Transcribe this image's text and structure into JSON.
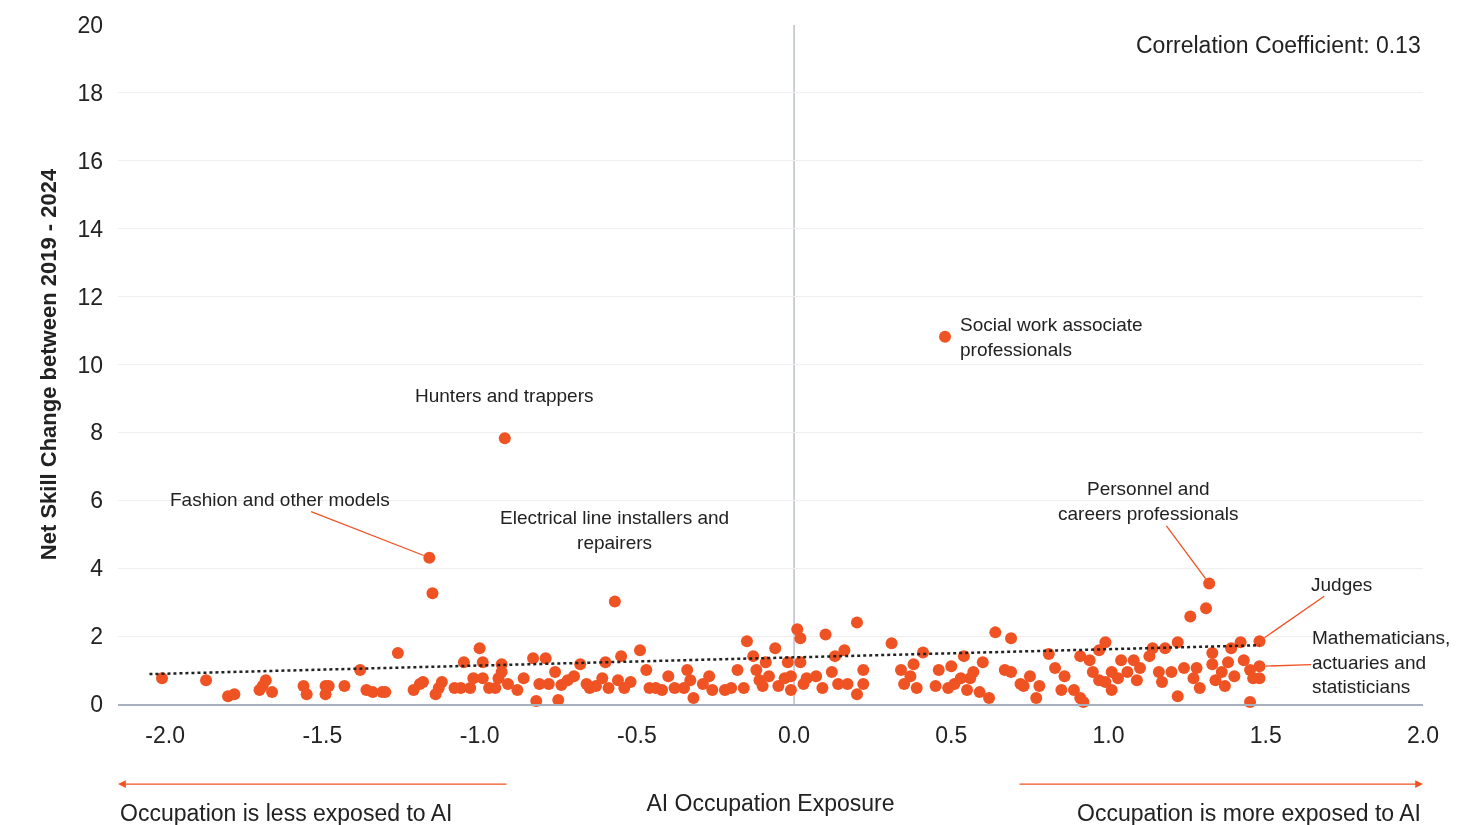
{
  "chart_data": {
    "type": "scatter",
    "xlabel": "AI Occupation Exposure",
    "ylabel": "Net Skill Change between 2019 - 2024",
    "xlim": [
      -2.15,
      2.0
    ],
    "xticks": [
      {
        "value": -2,
        "label": "-2.0"
      },
      {
        "value": -1.5,
        "label": "-1.5"
      },
      {
        "value": -1,
        "label": "-1.0"
      },
      {
        "value": -0.5,
        "label": "-0.5"
      },
      {
        "value": 0,
        "label": "0.0"
      },
      {
        "value": 0.5,
        "label": "0.5"
      },
      {
        "value": 1,
        "label": "1.0"
      },
      {
        "value": 1.5,
        "label": "1.5"
      },
      {
        "value": 2,
        "label": "2.0"
      }
    ],
    "ylim": [
      0,
      20
    ],
    "yticks": [
      0,
      2,
      4,
      6,
      8,
      10,
      12,
      14,
      16,
      18,
      20
    ],
    "grid": "y",
    "marker": "circle",
    "ref_lines": [
      {
        "axis": "x",
        "value": 0,
        "label": null,
        "color": "#a9b0bd",
        "line_style": "solid"
      }
    ],
    "series": [
      {
        "color": "#f05323",
        "x": [
          -2.01,
          -1.87,
          -1.8,
          -1.78,
          -1.7,
          -1.68,
          -1.69,
          -1.66,
          -1.56,
          -1.55,
          -1.49,
          -1.49,
          -1.48,
          -1.43,
          -1.38,
          -1.36,
          -1.34,
          -1.31,
          -1.3,
          -1.26,
          -1.21,
          -1.19,
          -1.18,
          -1.16,
          -1.15,
          -1.14,
          -1.13,
          -1.12,
          -1.08,
          -1.06,
          -1.05,
          -1.03,
          -1.02,
          -1.0,
          -0.99,
          -0.99,
          -0.97,
          -0.95,
          -0.94,
          -0.93,
          -0.93,
          -0.92,
          -0.91,
          -0.88,
          -0.86,
          -0.83,
          -0.82,
          -0.81,
          -0.79,
          -0.78,
          -0.76,
          -0.75,
          -0.74,
          -0.72,
          -0.7,
          -0.68,
          -0.66,
          -0.65,
          -0.63,
          -0.61,
          -0.6,
          -0.59,
          -0.57,
          -0.56,
          -0.55,
          -0.54,
          -0.52,
          -0.49,
          -0.47,
          -0.46,
          -0.44,
          -0.42,
          -0.4,
          -0.38,
          -0.35,
          -0.34,
          -0.33,
          -0.32,
          -0.29,
          -0.27,
          -0.26,
          -0.22,
          -0.2,
          -0.18,
          -0.16,
          -0.15,
          -0.13,
          -0.12,
          -0.11,
          -0.1,
          -0.09,
          -0.08,
          -0.06,
          -0.05,
          -0.03,
          -0.02,
          -0.01,
          -0.01,
          0.01,
          0.02,
          0.02,
          0.03,
          0.04,
          0.07,
          0.09,
          0.1,
          0.12,
          0.13,
          0.14,
          0.16,
          0.17,
          0.2,
          0.2,
          0.22,
          0.22,
          0.31,
          0.34,
          0.35,
          0.37,
          0.38,
          0.39,
          0.41,
          0.45,
          0.46,
          0.48,
          0.49,
          0.5,
          0.51,
          0.53,
          0.54,
          0.55,
          0.56,
          0.57,
          0.59,
          0.6,
          0.62,
          0.64,
          0.67,
          0.69,
          0.69,
          0.72,
          0.73,
          0.75,
          0.77,
          0.78,
          0.81,
          0.83,
          0.85,
          0.86,
          0.89,
          0.91,
          0.91,
          0.92,
          0.94,
          0.95,
          0.97,
          0.97,
          0.99,
          0.99,
          1.01,
          1.01,
          1.03,
          1.04,
          1.06,
          1.08,
          1.09,
          1.1,
          1.13,
          1.14,
          1.16,
          1.17,
          1.18,
          1.2,
          1.22,
          1.22,
          1.24,
          1.26,
          1.27,
          1.28,
          1.29,
          1.31,
          1.32,
          1.33,
          1.33,
          1.34,
          1.36,
          1.37,
          1.38,
          1.39,
          1.4,
          1.42,
          1.43,
          1.45,
          1.45,
          1.46,
          1.48,
          1.48,
          1.48
        ],
        "values": [
          0.76,
          0.7,
          0.23,
          0.29,
          0.41,
          0.7,
          0.53,
          0.35,
          0.53,
          0.29,
          0.53,
          0.29,
          0.53,
          0.53,
          1.0,
          0.41,
          0.35,
          0.35,
          0.35,
          1.5,
          0.41,
          0.59,
          0.65,
          4.31,
          3.26,
          0.29,
          0.47,
          0.65,
          0.47,
          0.47,
          1.23,
          0.47,
          0.76,
          1.64,
          1.23,
          0.76,
          0.47,
          0.47,
          0.76,
          1.17,
          0.94,
          7.83,
          0.59,
          0.41,
          0.76,
          1.35,
          0.09,
          0.59,
          1.35,
          0.59,
          0.94,
          0.12,
          0.56,
          0.7,
          0.82,
          1.17,
          0.59,
          0.47,
          0.53,
          0.76,
          1.23,
          0.47,
          3.02,
          0.7,
          1.41,
          0.47,
          0.65,
          1.58,
          1.0,
          0.47,
          0.47,
          0.41,
          0.82,
          0.47,
          0.47,
          1.0,
          0.7,
          0.18,
          0.59,
          0.82,
          0.41,
          0.41,
          0.47,
          1.0,
          0.47,
          1.85,
          1.41,
          1.0,
          0.7,
          0.53,
          1.23,
          0.82,
          1.64,
          0.53,
          0.76,
          1.23,
          0.82,
          0.41,
          2.2,
          1.94,
          1.23,
          0.59,
          0.76,
          0.82,
          0.47,
          2.05,
          0.94,
          1.41,
          0.59,
          1.58,
          0.59,
          0.29,
          2.4,
          0.59,
          1.0,
          1.79,
          1.0,
          0.59,
          0.82,
          1.17,
          0.47,
          1.52,
          0.53,
          1.0,
          10.82,
          0.47,
          1.11,
          0.59,
          0.76,
          1.41,
          0.41,
          0.76,
          0.94,
          0.35,
          1.23,
          0.18,
          2.11,
          1.0,
          1.94,
          0.94,
          0.59,
          0.53,
          0.82,
          0.18,
          0.53,
          1.47,
          1.06,
          0.41,
          0.82,
          0.41,
          1.41,
          0.18,
          0.06,
          1.29,
          0.94,
          0.7,
          1.58,
          1.82,
          0.65,
          0.94,
          0.41,
          0.76,
          1.29,
          0.94,
          1.29,
          0.7,
          1.06,
          1.41,
          1.64,
          0.94,
          0.65,
          1.64,
          0.94,
          1.82,
          0.23,
          1.06,
          2.58,
          0.76,
          1.06,
          0.47,
          2.82,
          3.55,
          1.5,
          1.17,
          0.7,
          0.94,
          0.53,
          1.23,
          1.64,
          0.82,
          1.82,
          1.29,
          1.0,
          0.06,
          0.76,
          1.85,
          1.11,
          0.76
        ]
      },
      {
        "type": "line",
        "color": "#222222",
        "line_style": "dotted",
        "marker": "none",
        "x": [
          -2.05,
          1.48
        ],
        "values": [
          0.88,
          1.73
        ]
      }
    ],
    "annotations": [
      "Correlation Coefficient: 0.13",
      {
        "text": "Hunters and trappers",
        "x": -0.92,
        "y": 7.83
      },
      {
        "text": "Social work associate\nprofessionals",
        "x": 0.48,
        "y": 10.82
      },
      {
        "text": "Fashion and other models",
        "x": -1.16,
        "y": 4.31
      },
      {
        "text": "Electrical line installers and\nrepairers",
        "x": -0.57,
        "y": 3.02
      },
      {
        "text": "Personnel and\ncareers professionals",
        "x": 1.32,
        "y": 3.55
      },
      {
        "text": "Judges",
        "x": 1.48,
        "y": 1.85
      },
      {
        "text": "Mathematicians,\nactuaries and\nstatisticians",
        "x": 1.48,
        "y": 1.11
      },
      "Occupation is less exposed to AI",
      "Occupation is more exposed to AI"
    ]
  }
}
